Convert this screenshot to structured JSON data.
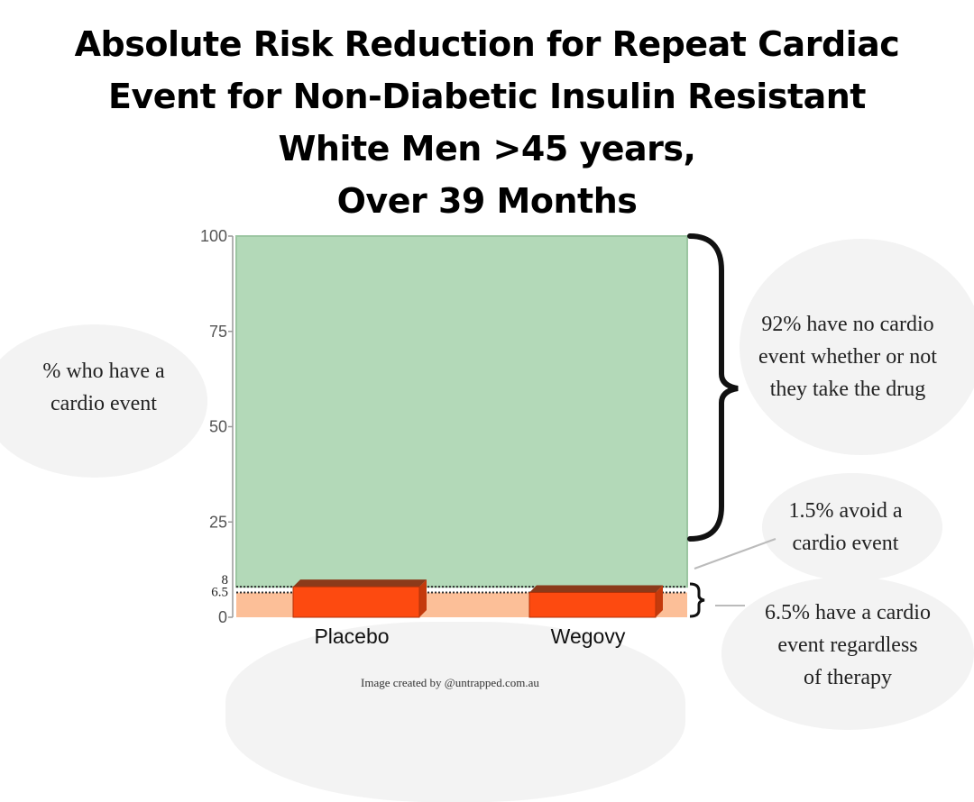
{
  "title_lines": [
    "Absolute Risk Reduction for Repeat Cardiac",
    "Event for Non-Diabetic Insulin Resistant",
    "White Men  >45 years,",
    "Over 39 Months"
  ],
  "annotations": {
    "left_label": [
      "% who have a",
      "cardio event"
    ],
    "no_event": [
      "92% have no cardio",
      "event whether or not",
      "they take the drug"
    ],
    "avoid": [
      "1.5% avoid a",
      "cardio event"
    ],
    "regardless": [
      "6.5% have a cardio",
      "event regardless",
      "of therapy"
    ]
  },
  "credit": "Image created by @untrapped.com.au",
  "colors": {
    "background_green": "#b3d9b8",
    "background_peach": "#fcbf98",
    "bar_red": "#fd4a10",
    "bar_top_dark": "#8b3a1a"
  },
  "chart_data": {
    "type": "bar",
    "categories": [
      "Placebo",
      "Wegovy"
    ],
    "values": [
      8,
      6.5
    ],
    "ylim": [
      0,
      100
    ],
    "yticks": [
      "0",
      "25",
      "50",
      "75",
      "100"
    ],
    "ytick_values": [
      0,
      25,
      50,
      75,
      100
    ],
    "extra_ticks": [
      "6.5",
      "8"
    ],
    "extra_tick_values": [
      6.5,
      8
    ],
    "grid": false,
    "bands": [
      {
        "from": 0,
        "to": 6.5,
        "color": "peach"
      },
      {
        "from": 8,
        "to": 100,
        "color": "green"
      }
    ]
  }
}
